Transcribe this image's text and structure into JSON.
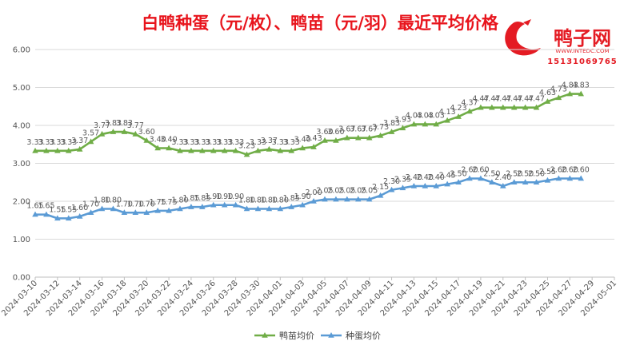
{
  "watermark": {
    "name": "鸭子网",
    "site": "WWW.INTEDC.COM",
    "phone": "15131069765"
  },
  "chart_data": {
    "type": "line",
    "title": "白鸭种蛋（元/枚）、鸭苗（元/羽）最近平均价格",
    "ylim": [
      0,
      6
    ],
    "yticks": [
      "0.00",
      "1.00",
      "2.00",
      "3.00",
      "4.00",
      "5.00",
      "6.00"
    ],
    "grid": true,
    "legend_position": "bottom",
    "x_range": [
      "2024-03-10",
      "2024-05-01"
    ],
    "x_tick_labels": [
      "2024-03-10",
      "2024-03-12",
      "2024-03-14",
      "2024-03-16",
      "2024-03-18",
      "2024-03-20",
      "2024-03-22",
      "2024-03-24",
      "2024-03-26",
      "2024-03-28",
      "2024-03-30",
      "2024-04-01",
      "2024-04-03",
      "2024-04-05",
      "2024-04-07",
      "2024-04-09",
      "2024-04-11",
      "2024-04-13",
      "2024-04-15",
      "2024-04-17",
      "2024-04-19",
      "2024-04-21",
      "2024-04-23",
      "2024-04-25",
      "2024-04-27",
      "2024-04-29",
      "2024-05-01"
    ],
    "x": [
      "2024-03-10",
      "2024-03-11",
      "2024-03-12",
      "2024-03-13",
      "2024-03-14",
      "2024-03-15",
      "2024-03-16",
      "2024-03-17",
      "2024-03-18",
      "2024-03-19",
      "2024-03-20",
      "2024-03-21",
      "2024-03-22",
      "2024-03-23",
      "2024-03-24",
      "2024-03-25",
      "2024-03-26",
      "2024-03-27",
      "2024-03-28",
      "2024-03-29",
      "2024-03-30",
      "2024-03-31",
      "2024-04-01",
      "2024-04-02",
      "2024-04-03",
      "2024-04-04",
      "2024-04-05",
      "2024-04-06",
      "2024-04-07",
      "2024-04-08",
      "2024-04-09",
      "2024-04-10",
      "2024-04-11",
      "2024-04-12",
      "2024-04-13",
      "2024-04-14",
      "2024-04-15",
      "2024-04-16",
      "2024-04-17",
      "2024-04-18",
      "2024-04-19",
      "2024-04-20",
      "2024-04-21",
      "2024-04-22",
      "2024-04-23",
      "2024-04-24",
      "2024-04-25",
      "2024-04-26",
      "2024-04-27",
      "2024-04-28"
    ],
    "series": [
      {
        "name": "鸭苗均价",
        "color": "#70ad47",
        "marker": "triangle",
        "values": [
          3.33,
          3.33,
          3.33,
          3.33,
          3.37,
          3.57,
          3.77,
          3.83,
          3.83,
          3.77,
          3.6,
          3.4,
          3.4,
          3.33,
          3.33,
          3.33,
          3.33,
          3.33,
          3.33,
          3.23,
          3.33,
          3.37,
          3.33,
          3.33,
          3.4,
          3.43,
          3.6,
          3.6,
          3.67,
          3.67,
          3.67,
          3.73,
          3.83,
          3.93,
          4.03,
          4.03,
          4.03,
          4.13,
          4.23,
          4.37,
          4.47,
          4.47,
          4.47,
          4.47,
          4.47,
          4.47,
          4.63,
          4.73,
          4.83,
          4.83
        ]
      },
      {
        "name": "种蛋均价",
        "color": "#5b9bd5",
        "marker": "triangle",
        "values": [
          1.65,
          1.65,
          1.55,
          1.55,
          1.6,
          1.7,
          1.8,
          1.8,
          1.7,
          1.7,
          1.7,
          1.75,
          1.75,
          1.8,
          1.85,
          1.85,
          1.9,
          1.9,
          1.9,
          1.8,
          1.8,
          1.8,
          1.8,
          1.85,
          1.9,
          2.0,
          2.05,
          2.05,
          2.05,
          2.05,
          2.05,
          2.15,
          2.3,
          2.35,
          2.4,
          2.4,
          2.4,
          2.45,
          2.5,
          2.6,
          2.6,
          2.5,
          2.4,
          2.5,
          2.5,
          2.5,
          2.55,
          2.6,
          2.6,
          2.6
        ]
      }
    ]
  }
}
